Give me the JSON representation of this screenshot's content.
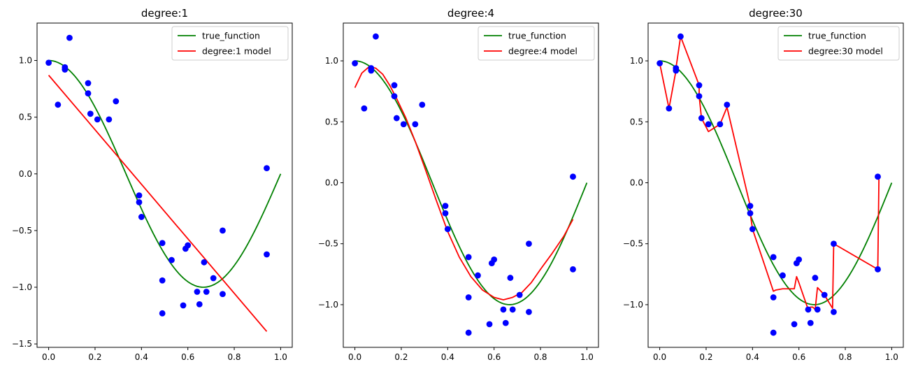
{
  "chart_data": [
    {
      "type": "line",
      "title": "degree:1",
      "xlabel": "",
      "ylabel": "",
      "xlim": [
        -0.05,
        1.05
      ],
      "ylim": [
        -1.53,
        1.33
      ],
      "xticks": [
        "0.0",
        "0.2",
        "0.4",
        "0.6",
        "0.8",
        "1.0"
      ],
      "yticks": [
        "1.0",
        "0.5",
        "0.0",
        "-0.5",
        "-1.0",
        "-1.5"
      ],
      "legend": {
        "placement": "top-right",
        "entries": [
          "true_function",
          "degree:1 model"
        ]
      },
      "series": [
        {
          "name": "true_function",
          "kind": "line",
          "color": "#008000",
          "function": "cos(1.5*pi*x)"
        },
        {
          "name": "degree:1 model",
          "kind": "line",
          "color": "#ff0000",
          "x": [
            0.0,
            0.94
          ],
          "y": [
            0.87,
            -1.39
          ]
        },
        {
          "kind": "scatter",
          "color": "#0000ff",
          "x": [
            0.0,
            0.04,
            0.07,
            0.07,
            0.09,
            0.17,
            0.17,
            0.18,
            0.21,
            0.26,
            0.29,
            0.39,
            0.39,
            0.4,
            0.49,
            0.49,
            0.49,
            0.53,
            0.58,
            0.59,
            0.6,
            0.64,
            0.65,
            0.67,
            0.68,
            0.71,
            0.75,
            0.75,
            0.94,
            0.94
          ],
          "y": [
            0.98,
            0.61,
            0.92,
            0.94,
            1.2,
            0.8,
            0.71,
            0.53,
            0.48,
            0.48,
            0.64,
            -0.19,
            -0.25,
            -0.38,
            -0.61,
            -0.94,
            -1.23,
            -0.76,
            -1.16,
            -0.66,
            -0.63,
            -1.04,
            -1.15,
            -0.78,
            -1.04,
            -0.92,
            -1.06,
            -0.5,
            -0.71,
            0.05
          ]
        }
      ]
    },
    {
      "type": "line",
      "title": "degree:4",
      "xlabel": "",
      "ylabel": "",
      "xlim": [
        -0.05,
        1.05
      ],
      "ylim": [
        -1.35,
        1.31
      ],
      "xticks": [
        "0.0",
        "0.2",
        "0.4",
        "0.6",
        "0.8",
        "1.0"
      ],
      "yticks": [
        "1.0",
        "0.5",
        "0.0",
        "-0.5",
        "-1.0"
      ],
      "legend": {
        "placement": "top-right",
        "entries": [
          "true_function",
          "degree:4 model"
        ]
      },
      "series": [
        {
          "name": "true_function",
          "kind": "line",
          "color": "#008000",
          "function": "cos(1.5*pi*x)"
        },
        {
          "name": "degree:4 model",
          "kind": "line",
          "color": "#ff0000",
          "x": [
            0.0,
            0.03,
            0.06,
            0.09,
            0.12,
            0.15,
            0.18,
            0.22,
            0.26,
            0.3,
            0.35,
            0.4,
            0.45,
            0.5,
            0.55,
            0.6,
            0.64,
            0.68,
            0.72,
            0.76,
            0.8,
            0.85,
            0.9,
            0.94
          ],
          "y": [
            0.78,
            0.9,
            0.95,
            0.94,
            0.89,
            0.8,
            0.69,
            0.53,
            0.34,
            0.13,
            -0.14,
            -0.4,
            -0.61,
            -0.77,
            -0.88,
            -0.94,
            -0.96,
            -0.94,
            -0.9,
            -0.82,
            -0.71,
            -0.58,
            -0.44,
            -0.3
          ]
        },
        {
          "kind": "scatter",
          "color": "#0000ff",
          "x": [
            0.0,
            0.04,
            0.07,
            0.07,
            0.09,
            0.17,
            0.17,
            0.18,
            0.21,
            0.26,
            0.29,
            0.39,
            0.39,
            0.4,
            0.49,
            0.49,
            0.49,
            0.53,
            0.58,
            0.59,
            0.6,
            0.64,
            0.65,
            0.67,
            0.68,
            0.71,
            0.75,
            0.75,
            0.94,
            0.94
          ],
          "y": [
            0.98,
            0.61,
            0.92,
            0.94,
            1.2,
            0.8,
            0.71,
            0.53,
            0.48,
            0.48,
            0.64,
            -0.19,
            -0.25,
            -0.38,
            -0.61,
            -0.94,
            -1.23,
            -0.76,
            -1.16,
            -0.66,
            -0.63,
            -1.04,
            -1.15,
            -0.78,
            -1.04,
            -0.92,
            -1.06,
            -0.5,
            -0.71,
            0.05
          ]
        }
      ]
    },
    {
      "type": "line",
      "title": "degree:30",
      "xlabel": "",
      "ylabel": "",
      "xlim": [
        -0.05,
        1.05
      ],
      "ylim": [
        -1.35,
        1.31
      ],
      "xticks": [
        "0.0",
        "0.2",
        "0.4",
        "0.6",
        "0.8",
        "1.0"
      ],
      "yticks": [
        "1.0",
        "0.5",
        "0.0",
        "-0.5",
        "-1.0"
      ],
      "legend": {
        "placement": "top-right",
        "entries": [
          "true_function",
          "degree:30 model"
        ]
      },
      "series": [
        {
          "name": "true_function",
          "kind": "line",
          "color": "#008000",
          "function": "cos(1.5*pi*x)"
        },
        {
          "name": "degree:30 model",
          "kind": "line",
          "color": "#ff0000",
          "x": [
            0.0,
            0.04,
            0.07,
            0.07,
            0.09,
            0.17,
            0.17,
            0.18,
            0.21,
            0.26,
            0.29,
            0.39,
            0.39,
            0.4,
            0.49,
            0.5,
            0.53,
            0.58,
            0.59,
            0.6,
            0.64,
            0.65,
            0.66,
            0.67,
            0.68,
            0.71,
            0.745,
            0.75,
            0.94,
            0.945
          ],
          "y": [
            0.98,
            0.61,
            0.92,
            0.94,
            1.2,
            0.8,
            0.71,
            0.53,
            0.42,
            0.48,
            0.62,
            -0.19,
            -0.25,
            -0.38,
            -0.89,
            -0.88,
            -0.87,
            -0.87,
            -0.77,
            -0.82,
            -1.04,
            -1.02,
            -1.02,
            -1.04,
            -0.86,
            -0.92,
            -1.03,
            -0.5,
            -0.71,
            0.05
          ]
        },
        {
          "kind": "scatter",
          "color": "#0000ff",
          "x": [
            0.0,
            0.04,
            0.07,
            0.07,
            0.09,
            0.17,
            0.17,
            0.18,
            0.21,
            0.26,
            0.29,
            0.39,
            0.39,
            0.4,
            0.49,
            0.49,
            0.49,
            0.53,
            0.58,
            0.59,
            0.6,
            0.64,
            0.65,
            0.67,
            0.68,
            0.71,
            0.75,
            0.75,
            0.94,
            0.94
          ],
          "y": [
            0.98,
            0.61,
            0.92,
            0.94,
            1.2,
            0.8,
            0.71,
            0.53,
            0.48,
            0.48,
            0.64,
            -0.19,
            -0.25,
            -0.38,
            -0.61,
            -0.94,
            -1.23,
            -0.76,
            -1.16,
            -0.66,
            -0.63,
            -1.04,
            -1.15,
            -0.78,
            -1.04,
            -0.92,
            -1.06,
            -0.5,
            -0.71,
            0.05
          ]
        }
      ]
    }
  ]
}
